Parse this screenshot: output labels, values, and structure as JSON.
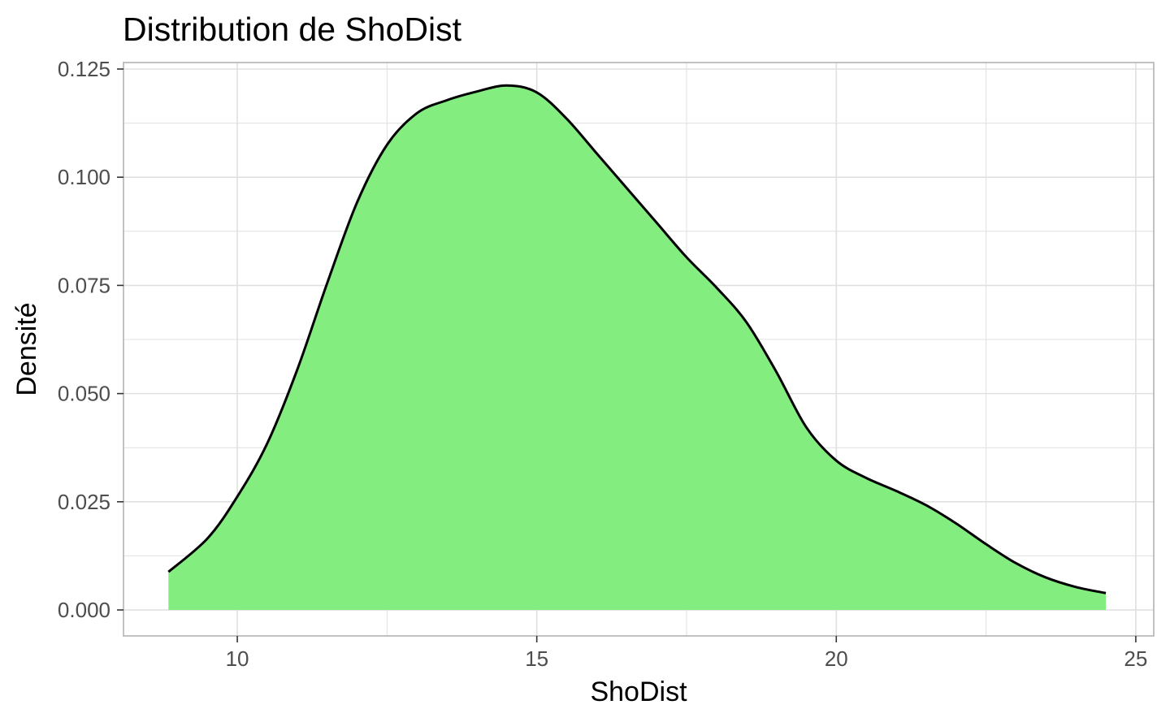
{
  "chart_data": {
    "type": "area",
    "title": "Distribution de ShoDist",
    "xlabel": "ShoDist",
    "ylabel": "Densité",
    "xlim": [
      8.1,
      25.3
    ],
    "ylim": [
      -0.006,
      0.1265
    ],
    "x_ticks": [
      10,
      15,
      20,
      25
    ],
    "x_tick_labels": [
      "10",
      "15",
      "20",
      "25"
    ],
    "y_ticks": [
      0.0,
      0.025,
      0.05,
      0.075,
      0.1,
      0.125
    ],
    "y_tick_labels": [
      "0.000",
      "0.025",
      "0.050",
      "0.075",
      "0.100",
      "0.125"
    ],
    "grid": true,
    "legend": "none",
    "fill_color": "#83ED80",
    "line_color": "#000000",
    "panel_border_color": "#b3b3b3",
    "grid_color": "#e0e0e0",
    "series": [
      {
        "x": [
          8.85,
          9.5,
          10.0,
          10.5,
          11.0,
          11.5,
          12.0,
          12.5,
          13.0,
          13.5,
          14.0,
          14.5,
          15.0,
          15.5,
          16.0,
          16.5,
          17.0,
          17.5,
          18.0,
          18.5,
          19.0,
          19.5,
          20.0,
          20.5,
          21.0,
          21.5,
          22.0,
          22.5,
          23.0,
          23.5,
          24.0,
          24.5
        ],
        "y": [
          0.0088,
          0.0165,
          0.0262,
          0.0385,
          0.0555,
          0.0755,
          0.0942,
          0.1075,
          0.1148,
          0.1178,
          0.1198,
          0.1212,
          0.1196,
          0.1135,
          0.1055,
          0.0975,
          0.0895,
          0.0815,
          0.0745,
          0.0665,
          0.055,
          0.0422,
          0.0345,
          0.0305,
          0.0275,
          0.0242,
          0.02,
          0.0152,
          0.0108,
          0.0075,
          0.0053,
          0.0039
        ]
      }
    ]
  }
}
